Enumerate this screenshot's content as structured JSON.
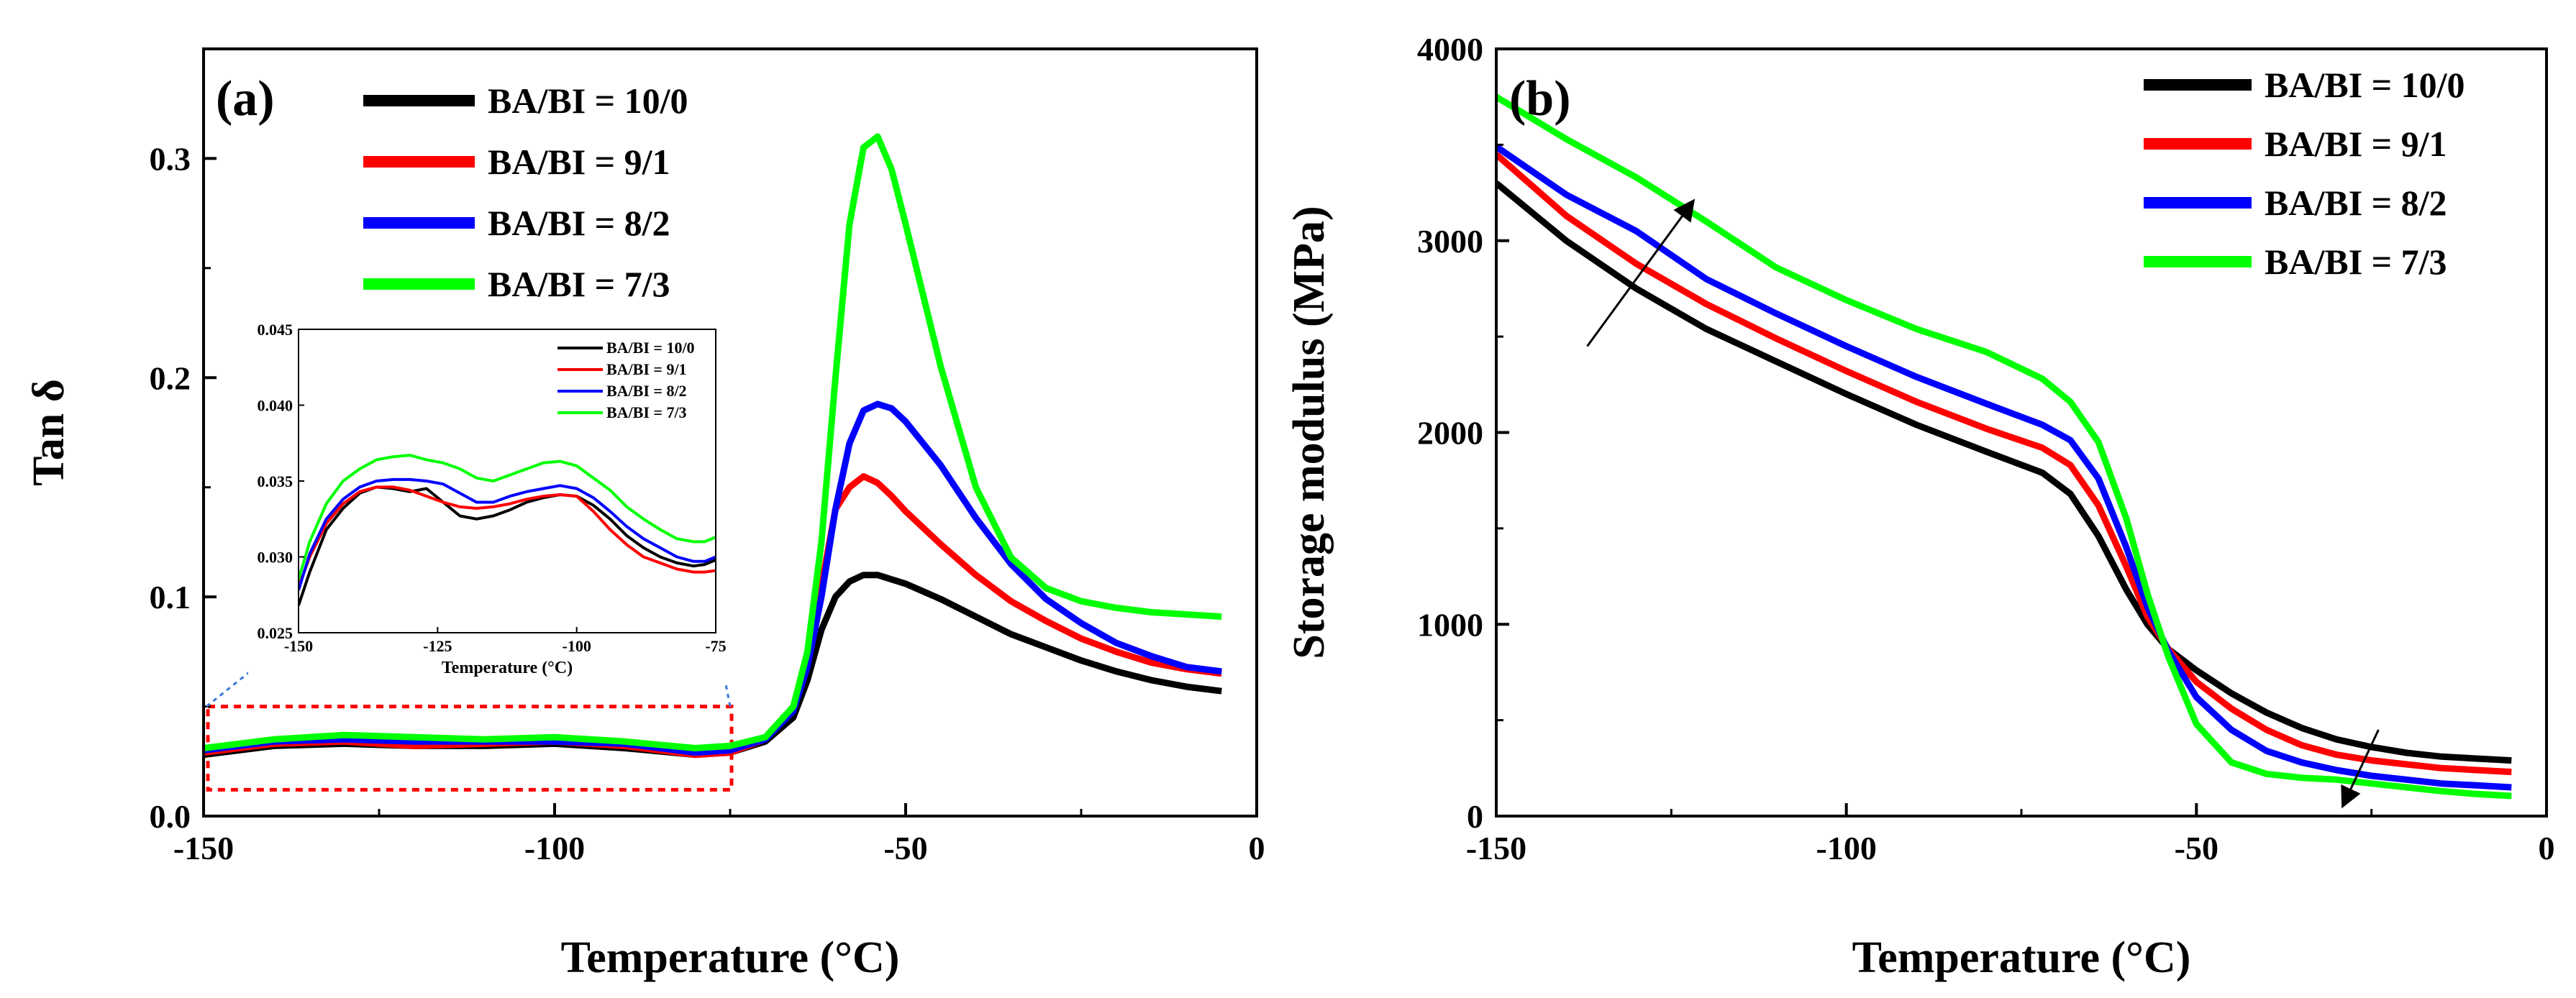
{
  "chart_data": [
    {
      "type": "line",
      "panel_label": "(a)",
      "xlabel": "Temperature (°C)",
      "ylabel": "Tan δ",
      "xlim": [
        -150,
        0
      ],
      "ylim": [
        0,
        0.35
      ],
      "xticks": [
        "-150",
        "-100",
        "-50",
        "0"
      ],
      "yticks": [
        "0.0",
        "0.1",
        "0.2",
        "0.3"
      ],
      "xtick_values": [
        -150,
        -100,
        -50,
        0
      ],
      "ytick_values": [
        0,
        0.1,
        0.2,
        0.3
      ],
      "legend_position": "top-left",
      "highlight_box": {
        "xmin": -150,
        "xmax": -75,
        "ymin": 0.012,
        "ymax": 0.05
      },
      "series": [
        {
          "name": "BA/BI = 10/0",
          "color": "#000000",
          "x": [
            -150,
            -140,
            -130,
            -120,
            -110,
            -100,
            -90,
            -80,
            -75,
            -70,
            -66,
            -64,
            -62,
            -60,
            -58,
            -56,
            -54,
            -52,
            -50,
            -45,
            -40,
            -35,
            -30,
            -25,
            -20,
            -15,
            -10,
            -5
          ],
          "y": [
            0.028,
            0.032,
            0.033,
            0.032,
            0.032,
            0.033,
            0.031,
            0.028,
            0.029,
            0.034,
            0.045,
            0.062,
            0.085,
            0.1,
            0.107,
            0.11,
            0.11,
            0.108,
            0.106,
            0.099,
            0.091,
            0.083,
            0.077,
            0.071,
            0.066,
            0.062,
            0.059,
            0.057
          ]
        },
        {
          "name": "BA/BI = 9/1",
          "color": "#ff0000",
          "x": [
            -150,
            -140,
            -130,
            -120,
            -110,
            -100,
            -90,
            -80,
            -75,
            -70,
            -66,
            -64,
            -62,
            -60,
            -58,
            -56,
            -54,
            -52,
            -50,
            -45,
            -40,
            -35,
            -30,
            -25,
            -20,
            -15,
            -10,
            -5
          ],
          "y": [
            0.029,
            0.033,
            0.034,
            0.032,
            0.033,
            0.034,
            0.032,
            0.028,
            0.029,
            0.035,
            0.05,
            0.072,
            0.105,
            0.14,
            0.15,
            0.155,
            0.152,
            0.146,
            0.139,
            0.124,
            0.11,
            0.098,
            0.089,
            0.081,
            0.075,
            0.07,
            0.067,
            0.065
          ]
        },
        {
          "name": "BA/BI = 8/2",
          "color": "#0000ff",
          "x": [
            -150,
            -140,
            -130,
            -120,
            -110,
            -100,
            -90,
            -80,
            -75,
            -70,
            -66,
            -64,
            -62,
            -60,
            -58,
            -56,
            -54,
            -52,
            -50,
            -45,
            -40,
            -35,
            -30,
            -25,
            -20,
            -15,
            -10,
            -5
          ],
          "y": [
            0.03,
            0.034,
            0.035,
            0.034,
            0.034,
            0.034,
            0.033,
            0.029,
            0.03,
            0.035,
            0.048,
            0.068,
            0.1,
            0.14,
            0.17,
            0.185,
            0.188,
            0.186,
            0.18,
            0.16,
            0.136,
            0.115,
            0.099,
            0.088,
            0.079,
            0.073,
            0.068,
            0.066
          ]
        },
        {
          "name": "BA/BI = 7/3",
          "color": "#00ff00",
          "x": [
            -150,
            -140,
            -130,
            -120,
            -110,
            -100,
            -90,
            -80,
            -75,
            -70,
            -66,
            -64,
            -62,
            -60,
            -58,
            -56,
            -54,
            -52,
            -50,
            -45,
            -40,
            -35,
            -30,
            -25,
            -20,
            -15,
            -10,
            -5
          ],
          "y": [
            0.031,
            0.035,
            0.037,
            0.036,
            0.035,
            0.036,
            0.034,
            0.031,
            0.032,
            0.036,
            0.05,
            0.075,
            0.125,
            0.2,
            0.27,
            0.305,
            0.31,
            0.295,
            0.27,
            0.205,
            0.15,
            0.118,
            0.104,
            0.098,
            0.095,
            0.093,
            0.092,
            0.091
          ]
        }
      ],
      "inset": {
        "xlabel": "Temperature (°C)",
        "xlim": [
          -150,
          -75
        ],
        "ylim": [
          0.025,
          0.045
        ],
        "xticks": [
          "-150",
          "-125",
          "-100",
          "-75"
        ],
        "xtick_values": [
          -150,
          -125,
          -100,
          -75
        ],
        "yticks": [
          "0.025",
          "0.030",
          "0.035",
          "0.040",
          "0.045"
        ],
        "ytick_values": [
          0.025,
          0.03,
          0.035,
          0.04,
          0.045
        ],
        "legend_position": "top-right",
        "series": [
          {
            "name": "BA/BI = 10/0",
            "color": "#000000",
            "x": [
              -150,
              -148,
              -145,
              -142,
              -139,
              -136,
              -133,
              -130,
              -127,
              -124,
              -121,
              -118,
              -115,
              -112,
              -109,
              -106,
              -103,
              -100,
              -97,
              -94,
              -91,
              -88,
              -85,
              -82,
              -79,
              -77,
              -75
            ],
            "y": [
              0.0268,
              0.029,
              0.0318,
              0.0332,
              0.0342,
              0.0346,
              0.0345,
              0.0343,
              0.0345,
              0.0336,
              0.0327,
              0.0325,
              0.0327,
              0.0331,
              0.0336,
              0.0339,
              0.0341,
              0.034,
              0.0334,
              0.0325,
              0.0314,
              0.0306,
              0.03,
              0.0296,
              0.0294,
              0.0295,
              0.0298
            ]
          },
          {
            "name": "BA/BI = 9/1",
            "color": "#ff0000",
            "x": [
              -150,
              -148,
              -145,
              -142,
              -139,
              -136,
              -133,
              -130,
              -127,
              -124,
              -121,
              -118,
              -115,
              -112,
              -109,
              -106,
              -103,
              -100,
              -97,
              -94,
              -91,
              -88,
              -85,
              -82,
              -79,
              -77,
              -75
            ],
            "y": [
              0.028,
              0.03,
              0.0322,
              0.0335,
              0.0343,
              0.0346,
              0.0346,
              0.0344,
              0.034,
              0.0336,
              0.0333,
              0.0332,
              0.0333,
              0.0335,
              0.0338,
              0.034,
              0.0341,
              0.034,
              0.033,
              0.0318,
              0.0308,
              0.03,
              0.0296,
              0.0292,
              0.029,
              0.029,
              0.0291
            ]
          },
          {
            "name": "BA/BI = 8/2",
            "color": "#0000ff",
            "x": [
              -150,
              -148,
              -145,
              -142,
              -139,
              -136,
              -133,
              -130,
              -127,
              -124,
              -121,
              -118,
              -115,
              -112,
              -109,
              -106,
              -103,
              -100,
              -97,
              -94,
              -91,
              -88,
              -85,
              -82,
              -79,
              -77,
              -75
            ],
            "y": [
              0.0278,
              0.0302,
              0.0325,
              0.0338,
              0.0346,
              0.035,
              0.0351,
              0.0351,
              0.035,
              0.0348,
              0.0342,
              0.0336,
              0.0336,
              0.034,
              0.0343,
              0.0345,
              0.0347,
              0.0345,
              0.0339,
              0.033,
              0.032,
              0.0312,
              0.0306,
              0.03,
              0.0297,
              0.0297,
              0.03
            ]
          },
          {
            "name": "BA/BI = 7/3",
            "color": "#00ff00",
            "x": [
              -150,
              -148,
              -145,
              -142,
              -139,
              -136,
              -133,
              -130,
              -127,
              -124,
              -121,
              -118,
              -115,
              -112,
              -109,
              -106,
              -103,
              -100,
              -97,
              -94,
              -91,
              -88,
              -85,
              -82,
              -79,
              -77,
              -75
            ],
            "y": [
              0.0285,
              0.031,
              0.0335,
              0.035,
              0.0358,
              0.0364,
              0.0366,
              0.0367,
              0.0364,
              0.0362,
              0.0358,
              0.0352,
              0.035,
              0.0354,
              0.0358,
              0.0362,
              0.0363,
              0.036,
              0.0352,
              0.0344,
              0.0333,
              0.0325,
              0.0318,
              0.0312,
              0.031,
              0.031,
              0.0313
            ]
          }
        ]
      }
    },
    {
      "type": "line",
      "panel_label": "(b)",
      "xlabel": "Temperature (°C)",
      "ylabel": "Storage modulus (MPa)",
      "xlim": [
        -150,
        0
      ],
      "ylim": [
        0,
        4000
      ],
      "xticks": [
        "-150",
        "-100",
        "-50",
        "0"
      ],
      "yticks": [
        "0",
        "1000",
        "2000",
        "3000",
        "4000"
      ],
      "xtick_values": [
        -150,
        -100,
        -50,
        0
      ],
      "ytick_values": [
        0,
        1000,
        2000,
        3000,
        4000
      ],
      "legend_position": "top-right",
      "arrows": [
        {
          "from": [
            -137,
            2450
          ],
          "to": [
            -122,
            3200
          ],
          "meaning": "increasing BI"
        },
        {
          "from": [
            -24,
            450
          ],
          "to": [
            -29,
            60
          ],
          "meaning": "decreasing"
        }
      ],
      "series": [
        {
          "name": "BA/BI = 10/0",
          "color": "#000000",
          "x": [
            -150,
            -140,
            -130,
            -120,
            -110,
            -100,
            -90,
            -80,
            -72,
            -68,
            -64,
            -60,
            -57,
            -54,
            -50,
            -45,
            -40,
            -35,
            -30,
            -25,
            -20,
            -15,
            -10,
            -5
          ],
          "y": [
            3300,
            3000,
            2750,
            2540,
            2370,
            2200,
            2040,
            1900,
            1790,
            1680,
            1460,
            1180,
            1000,
            870,
            760,
            640,
            540,
            460,
            400,
            360,
            330,
            310,
            300,
            290
          ]
        },
        {
          "name": "BA/BI = 9/1",
          "color": "#ff0000",
          "x": [
            -150,
            -140,
            -130,
            -120,
            -110,
            -100,
            -90,
            -80,
            -72,
            -68,
            -64,
            -60,
            -57,
            -54,
            -50,
            -45,
            -40,
            -35,
            -30,
            -25,
            -20,
            -15,
            -10,
            -5
          ],
          "y": [
            3450,
            3130,
            2880,
            2670,
            2490,
            2320,
            2160,
            2020,
            1920,
            1830,
            1620,
            1300,
            1040,
            870,
            700,
            560,
            450,
            370,
            320,
            290,
            270,
            250,
            240,
            230
          ]
        },
        {
          "name": "BA/BI = 8/2",
          "color": "#0000ff",
          "x": [
            -150,
            -140,
            -130,
            -120,
            -110,
            -100,
            -90,
            -80,
            -72,
            -68,
            -64,
            -60,
            -57,
            -54,
            -50,
            -45,
            -40,
            -35,
            -30,
            -25,
            -20,
            -15,
            -10,
            -5
          ],
          "y": [
            3490,
            3240,
            3050,
            2800,
            2620,
            2450,
            2290,
            2150,
            2040,
            1960,
            1760,
            1400,
            1090,
            860,
            620,
            450,
            340,
            280,
            240,
            210,
            190,
            170,
            160,
            150
          ]
        },
        {
          "name": "BA/BI = 7/3",
          "color": "#00ff00",
          "x": [
            -150,
            -140,
            -130,
            -120,
            -110,
            -100,
            -90,
            -80,
            -72,
            -68,
            -64,
            -60,
            -57,
            -54,
            -50,
            -45,
            -40,
            -35,
            -30,
            -25,
            -20,
            -15,
            -10,
            -5
          ],
          "y": [
            3750,
            3530,
            3330,
            3100,
            2860,
            2690,
            2540,
            2420,
            2280,
            2160,
            1950,
            1550,
            1160,
            830,
            480,
            280,
            220,
            200,
            190,
            170,
            150,
            130,
            115,
            105
          ]
        }
      ]
    }
  ]
}
